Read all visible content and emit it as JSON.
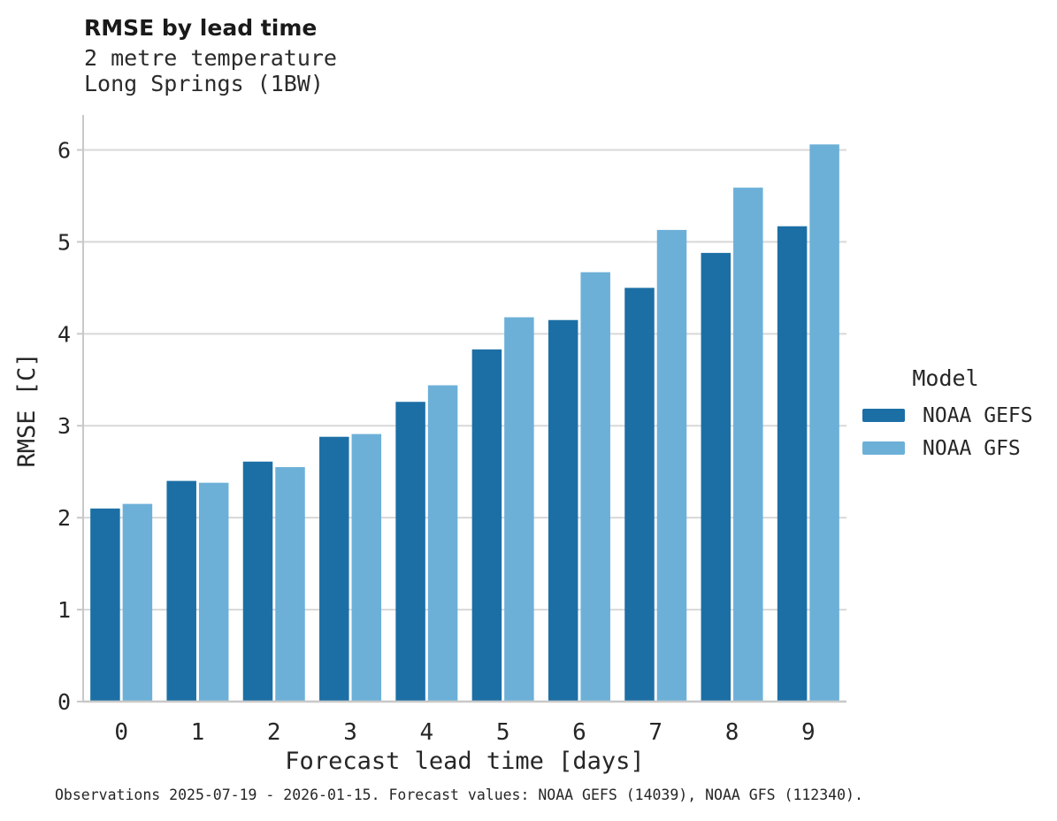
{
  "header": {
    "title": "RMSE by lead time",
    "subtitle_line1": "2 metre temperature",
    "subtitle_line2": "Long Springs (1BW)"
  },
  "chart_data": {
    "type": "bar",
    "title": "RMSE by lead time",
    "subtitle": [
      "2 metre temperature",
      "Long Springs (1BW)"
    ],
    "categories": [
      "0",
      "1",
      "2",
      "3",
      "4",
      "5",
      "6",
      "7",
      "8",
      "9"
    ],
    "series": [
      {
        "name": "NOAA GEFS",
        "color": "#1c6fa5",
        "values": [
          2.1,
          2.4,
          2.61,
          2.88,
          3.26,
          3.83,
          4.15,
          4.5,
          4.88,
          5.17
        ]
      },
      {
        "name": "NOAA GFS",
        "color": "#6cb0d8",
        "values": [
          2.15,
          2.38,
          2.55,
          2.91,
          3.44,
          4.18,
          4.67,
          5.13,
          5.59,
          6.06
        ]
      }
    ],
    "xlabel": "Forecast lead time [days]",
    "ylabel": "RMSE [C]",
    "ylim": [
      0,
      6.38
    ],
    "yticks": [
      0,
      1,
      2,
      3,
      4,
      5,
      6
    ],
    "grid": "horizontal",
    "legend_title": "Model",
    "legend_position": "right"
  },
  "footer": {
    "caption": "Observations 2025-07-19 - 2026-01-15. Forecast values: NOAA GEFS (14039), NOAA GFS (112340)."
  },
  "colors": {
    "series_dark": "#1c6fa5",
    "series_light": "#6cb0d8",
    "gridline": "#d8d8d8",
    "spine": "#c8c8c8",
    "text": "#262626"
  }
}
